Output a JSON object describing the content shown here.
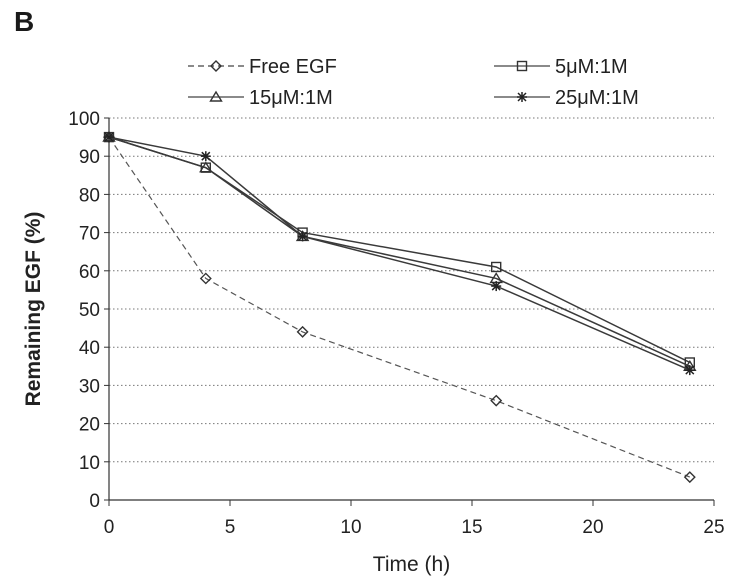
{
  "panel_label": "B",
  "chart_data": {
    "type": "line",
    "title": "",
    "xlabel": "Time (h)",
    "ylabel": "Remaining EGF (%)",
    "xlim": [
      0,
      25
    ],
    "ylim": [
      0,
      100
    ],
    "x_ticks": [
      "0",
      "5",
      "10",
      "15",
      "20",
      "25"
    ],
    "y_ticks": [
      "0",
      "10",
      "20",
      "30",
      "40",
      "50",
      "60",
      "70",
      "80",
      "90",
      "100"
    ],
    "grid": "horizontal dotted",
    "legend_position": "top",
    "x": [
      0,
      4,
      8,
      16,
      24
    ],
    "series": [
      {
        "name": "Free EGF",
        "marker": "diamond",
        "dashed": true,
        "values": [
          95,
          58,
          44,
          26,
          6
        ]
      },
      {
        "name": "5μM:1M",
        "marker": "square",
        "dashed": false,
        "values": [
          95,
          87,
          70,
          61,
          36
        ]
      },
      {
        "name": "15μM:1M",
        "marker": "triangle",
        "dashed": false,
        "values": [
          95,
          87,
          69,
          58,
          35
        ]
      },
      {
        "name": "25μM:1M",
        "marker": "star",
        "dashed": false,
        "values": [
          95,
          90,
          69,
          56,
          34
        ]
      }
    ]
  }
}
